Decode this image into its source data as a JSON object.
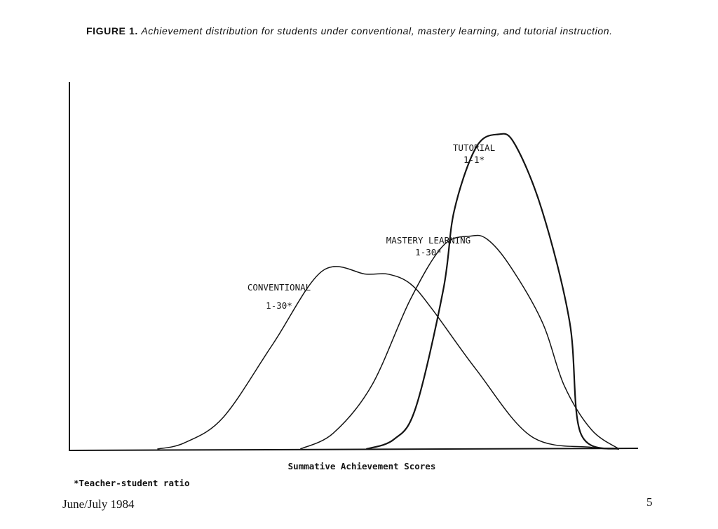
{
  "caption": {
    "figure_label": "FIGURE 1.",
    "text": "Achievement distribution for students under conventional, mastery learning, and tutorial instruction."
  },
  "chart_data": {
    "type": "line",
    "title": "FIGURE 1. Achievement distribution for students under conventional, mastery learning, and tutorial instruction.",
    "xlabel": "Summative Achievement Scores",
    "ylabel": "",
    "xlim": [
      0,
      100
    ],
    "ylim": [
      0,
      100
    ],
    "x_ticks": [],
    "y_ticks": [],
    "grid": false,
    "legend": "none (curves labeled directly)",
    "series": [
      {
        "name": "CONVENTIONAL",
        "label_lines": [
          "CONVENTIONAL",
          "1-30*"
        ],
        "x": [
          16,
          21,
          28,
          37,
          46,
          54,
          58,
          62,
          66,
          74,
          84,
          95,
          100
        ],
        "y": [
          0,
          2,
          10,
          33,
          56,
          55,
          55,
          52,
          44,
          25,
          4,
          0.5,
          0
        ]
      },
      {
        "name": "MASTERY LEARNING",
        "label_lines": [
          "MASTERY LEARNING",
          "1-30*"
        ],
        "x": [
          42,
          48,
          55,
          62,
          68,
          73,
          76,
          80,
          86,
          90,
          95,
          100
        ],
        "y": [
          0,
          5,
          20,
          47,
          64,
          67,
          66,
          58,
          40,
          20,
          6,
          0
        ]
      },
      {
        "name": "TUTORIAL",
        "label_lines": [
          "TUTORIAL",
          "1-1*"
        ],
        "x": [
          54,
          59,
          63,
          68,
          70,
          74,
          78,
          81,
          86,
          91,
          93,
          100
        ],
        "y": [
          0,
          3,
          13,
          50,
          75,
          95,
          99,
          96,
          75,
          40,
          5,
          0
        ]
      }
    ]
  },
  "footnote": "*Teacher-student ratio",
  "footer": {
    "date": "June/July 1984",
    "page_number": "5"
  }
}
